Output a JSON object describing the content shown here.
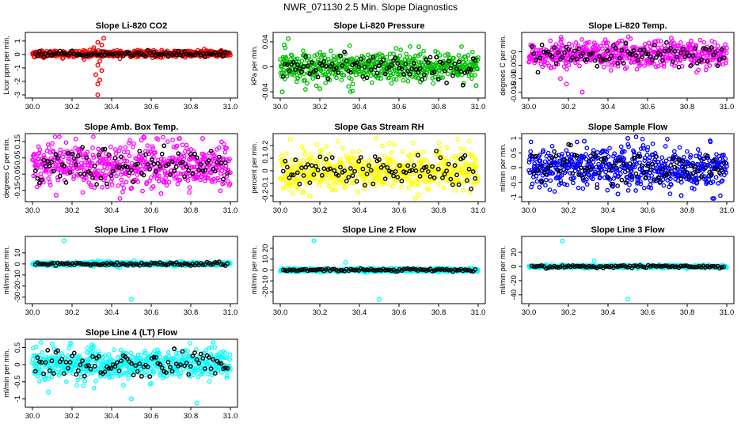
{
  "figure_title": "NWR_071130  2.5 Min. Slope Diagnostics",
  "chart_data": [
    {
      "type": "scatter",
      "title": "Slope Li-820 CO2",
      "ylabel": "Licor ppm per min.",
      "xlim": [
        30.0,
        31.0
      ],
      "ylim": [
        -3,
        1.4
      ],
      "yticks": [
        -3,
        -2,
        -1,
        0,
        1
      ],
      "xticks": [
        30.0,
        30.2,
        30.4,
        30.6,
        30.8,
        31.0
      ],
      "color": "#ff0000",
      "center": 0.05,
      "spread": 0.12,
      "outliers": [
        [
          30.33,
          -3.0
        ],
        [
          30.33,
          -2.2
        ],
        [
          30.34,
          -1.9
        ],
        [
          30.32,
          -1.5
        ],
        [
          30.35,
          -1.2
        ],
        [
          30.33,
          -0.8
        ],
        [
          30.34,
          -0.5
        ],
        [
          30.36,
          1.2
        ],
        [
          30.33,
          0.9
        ],
        [
          30.35,
          0.7
        ],
        [
          30.31,
          0.5
        ]
      ]
    },
    {
      "type": "scatter",
      "title": "Slope Li-820 Pressure",
      "ylabel": "kPa per min.",
      "xlim": [
        30.0,
        31.0
      ],
      "ylim": [
        -0.045,
        0.05
      ],
      "yticks": [
        -0.04,
        0.0,
        0.04
      ],
      "xticks": [
        30.0,
        30.2,
        30.4,
        30.6,
        30.8,
        31.0
      ],
      "color": "#00c000",
      "center": 0.0,
      "spread": 0.012,
      "outliers": [
        [
          30.01,
          -0.04
        ],
        [
          30.04,
          0.045
        ],
        [
          30.2,
          -0.035
        ],
        [
          30.99,
          -0.03
        ],
        [
          30.02,
          0.035
        ],
        [
          30.7,
          0.032
        ]
      ]
    },
    {
      "type": "scatter",
      "title": "Slope Li-820 Temp.",
      "ylabel": "degrees C per min.",
      "xlim": [
        30.0,
        31.0
      ],
      "ylim": [
        -0.016,
        0.006
      ],
      "yticks": [
        -0.015,
        -0.01,
        -0.005,
        0.0
      ],
      "xticks": [
        30.0,
        30.2,
        30.4,
        30.6,
        30.8,
        31.0
      ],
      "color": "#ff00ff",
      "center": -0.001,
      "spread": 0.0025,
      "outliers": [
        [
          30.27,
          -0.015
        ],
        [
          30.19,
          -0.012
        ],
        [
          30.16,
          -0.01
        ],
        [
          30.72,
          0.005
        ],
        [
          30.47,
          0.004
        ],
        [
          30.82,
          0.004
        ]
      ]
    },
    {
      "type": "scatter",
      "title": "Slope Amb. Box Temp.",
      "ylabel": "degrees C per min.",
      "xlim": [
        30.0,
        31.0
      ],
      "ylim": [
        -0.2,
        0.18
      ],
      "yticks": [
        -0.15,
        -0.05,
        0.05,
        0.15
      ],
      "xticks": [
        30.0,
        30.2,
        30.4,
        30.6,
        30.8,
        31.0
      ],
      "color": "#ff00ff",
      "center": 0.0,
      "spread": 0.07,
      "outliers": [
        [
          30.12,
          -0.18
        ],
        [
          30.86,
          0.17
        ],
        [
          30.55,
          0.16
        ],
        [
          30.65,
          -0.17
        ]
      ]
    },
    {
      "type": "scatter",
      "title": "Slope Gas Stream RH",
      "ylabel": "percent per min.",
      "xlim": [
        30.0,
        31.0
      ],
      "ylim": [
        -0.22,
        0.27
      ],
      "yticks": [
        -0.2,
        -0.1,
        0.0,
        0.1,
        0.2
      ],
      "xticks": [
        30.0,
        30.2,
        30.4,
        30.6,
        30.8,
        31.0
      ],
      "color": "#ffff00",
      "center": 0.0,
      "spread": 0.08,
      "outliers": [
        [
          30.05,
          0.25
        ],
        [
          30.15,
          -0.2
        ],
        [
          30.55,
          0.22
        ],
        [
          30.7,
          -0.19
        ]
      ]
    },
    {
      "type": "scatter",
      "title": "Slope Sample Flow",
      "ylabel": "ml/min per min.",
      "xlim": [
        30.0,
        31.0
      ],
      "ylim": [
        -1.05,
        1.05
      ],
      "yticks": [
        -1.0,
        -0.5,
        0.0,
        0.5,
        1.0
      ],
      "xticks": [
        30.0,
        30.2,
        30.4,
        30.6,
        30.8,
        31.0
      ],
      "color": "#0000ff",
      "center": 0.0,
      "spread": 0.35,
      "outliers": [
        [
          30.5,
          1.0
        ],
        [
          30.77,
          -0.95
        ],
        [
          30.45,
          -0.9
        ],
        [
          30.28,
          0.9
        ]
      ]
    },
    {
      "type": "scatter",
      "title": "Slope Line 1 Flow",
      "ylabel": "ml/min per min.",
      "xlim": [
        30.0,
        31.0
      ],
      "ylim": [
        -33,
        22
      ],
      "yticks": [
        -30,
        -20,
        -10,
        0,
        10
      ],
      "xticks": [
        30.0,
        30.2,
        30.4,
        30.6,
        30.8,
        31.0
      ],
      "color": "#00ffff",
      "center": 0.0,
      "spread": 0.8,
      "outliers": [
        [
          30.16,
          21
        ],
        [
          30.5,
          -32
        ],
        [
          30.33,
          3
        ],
        [
          30.75,
          -1.5
        ]
      ]
    },
    {
      "type": "scatter",
      "title": "Slope Line 2 Flow",
      "ylabel": "ml/min per min.",
      "xlim": [
        30.0,
        31.0
      ],
      "ylim": [
        -28,
        28
      ],
      "yticks": [
        -20,
        -10,
        0,
        10,
        20
      ],
      "xticks": [
        30.0,
        30.2,
        30.4,
        30.6,
        30.8,
        31.0
      ],
      "color": "#00ffff",
      "center": 0.0,
      "spread": 0.8,
      "outliers": [
        [
          30.17,
          27
        ],
        [
          30.5,
          -27
        ],
        [
          30.33,
          7
        ],
        [
          30.8,
          -2
        ]
      ]
    },
    {
      "type": "scatter",
      "title": "Slope Line 3 Flow",
      "ylabel": "ml/min per min.",
      "xlim": [
        30.0,
        31.0
      ],
      "ylim": [
        -48,
        38
      ],
      "yticks": [
        -40,
        -20,
        0,
        20
      ],
      "xticks": [
        30.0,
        30.2,
        30.4,
        30.6,
        30.8,
        31.0
      ],
      "color": "#00ffff",
      "center": 0.0,
      "spread": 1.0,
      "outliers": [
        [
          30.17,
          36
        ],
        [
          30.5,
          -46
        ],
        [
          30.33,
          8
        ],
        [
          30.8,
          -3
        ]
      ]
    },
    {
      "type": "scatter",
      "title": "Slope Line 4 (LT) Flow",
      "ylabel": "ml/min per min.",
      "xlim": [
        30.0,
        31.0
      ],
      "ylim": [
        -1.15,
        0.65
      ],
      "yticks": [
        -1.0,
        -0.5,
        0.0,
        0.5
      ],
      "xticks": [
        30.0,
        30.2,
        30.4,
        30.6,
        30.8,
        31.0
      ],
      "color": "#00ffff",
      "center": 0.0,
      "spread": 0.22,
      "outliers": [
        [
          30.5,
          -1.0
        ],
        [
          30.83,
          -1.12
        ],
        [
          30.1,
          0.6
        ],
        [
          30.3,
          0.58
        ],
        [
          30.08,
          -0.8
        ],
        [
          30.46,
          -0.6
        ]
      ]
    }
  ]
}
